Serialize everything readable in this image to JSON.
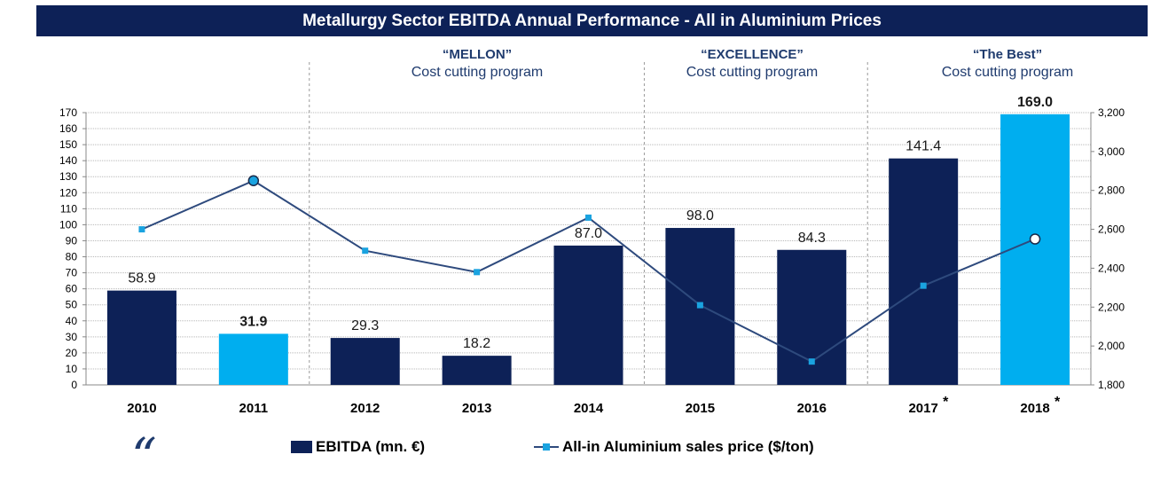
{
  "title": "Metallurgy Sector EBITDA Annual Performance - All in Aluminium Prices",
  "programs": [
    {
      "name": "“MELLON”",
      "desc": "Cost cutting program"
    },
    {
      "name": "“EXCELLENCE”",
      "desc": "Cost cutting program"
    },
    {
      "name": "“The Best”",
      "desc": "Cost cutting program"
    }
  ],
  "legend": {
    "bar_label": "EBITDA (mn. €)",
    "line_label": "All-in Aluminium sales price ($/ton)"
  },
  "colors": {
    "bar_dark": "#0d2157",
    "bar_light": "#00aeef",
    "line": "#2e4a7d",
    "marker": "#1aa3e0"
  },
  "chart_data": {
    "type": "bar",
    "categories": [
      "2010",
      "2011",
      "2012",
      "2013",
      "2014",
      "2015",
      "2016",
      "2017",
      "2018"
    ],
    "category_suffix": [
      "",
      "",
      "",
      "",
      "",
      "",
      "",
      "*",
      "*"
    ],
    "series": [
      {
        "name": "EBITDA (mn. €)",
        "type": "bar",
        "axis": "left",
        "values": [
          58.9,
          31.9,
          29.3,
          18.2,
          87.0,
          98.0,
          84.3,
          141.4,
          169.0
        ],
        "labels": [
          "58.9",
          "31.9",
          "29.3",
          "18.2",
          "87.0",
          "98.0",
          "84.3",
          "141.4",
          "169.0"
        ],
        "highlighted": [
          false,
          true,
          false,
          false,
          false,
          false,
          false,
          false,
          true
        ]
      },
      {
        "name": "All-in Aluminium sales price ($/ton)",
        "type": "line",
        "axis": "right",
        "values": [
          2600,
          2850,
          2490,
          2380,
          2660,
          2210,
          1920,
          2310,
          2550
        ],
        "open_circle_markers": [
          false,
          true,
          false,
          false,
          false,
          false,
          false,
          false,
          true
        ]
      }
    ],
    "left_axis": {
      "min": 0,
      "max": 170,
      "step": 10
    },
    "right_axis": {
      "min": 1800,
      "max": 3200,
      "step": 200,
      "tick_labels": [
        "1,800",
        "2,000",
        "2,200",
        "2,400",
        "2,600",
        "2,800",
        "3,000",
        "3,200"
      ]
    },
    "grid": true,
    "legend_position": "bottom"
  }
}
